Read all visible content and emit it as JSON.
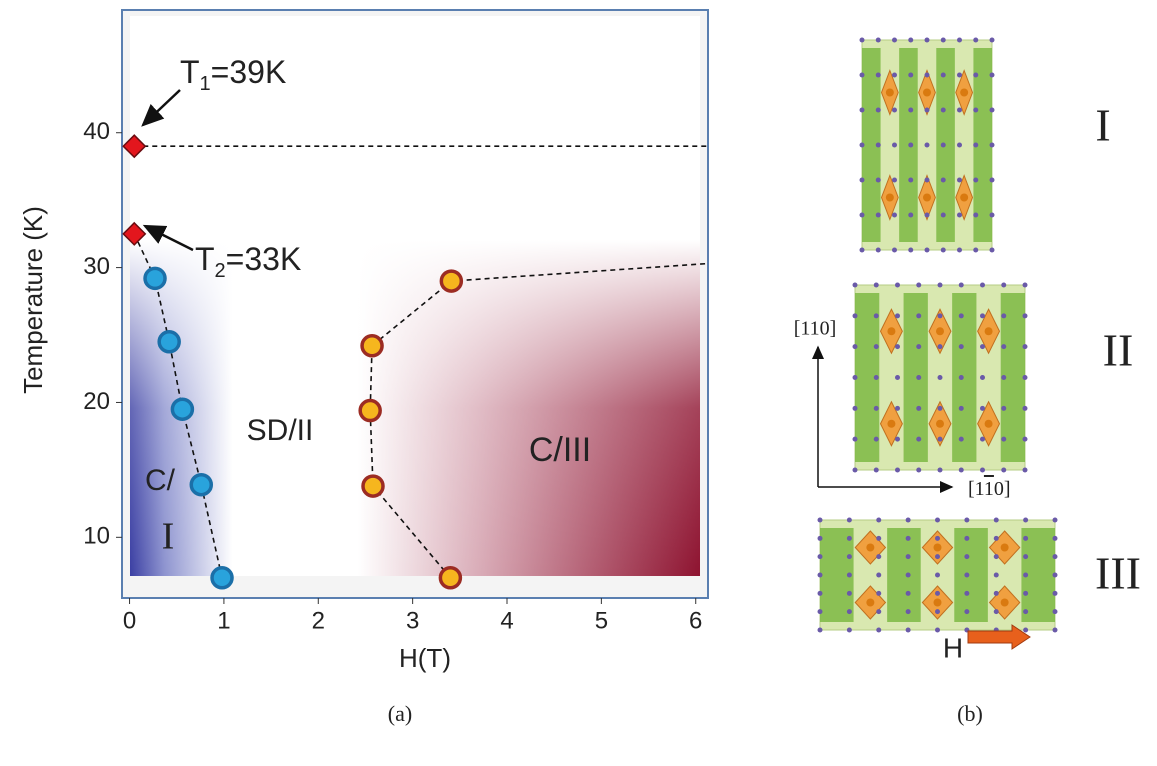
{
  "chart_data": {
    "type": "scatter",
    "xlabel": "H(T)",
    "ylabel": "Temperature (K)",
    "panel_label": "(a)",
    "xlim": [
      -0.08,
      6.13
    ],
    "ylim": [
      5.5,
      49.1
    ],
    "xticks": [
      0,
      1,
      2,
      3,
      4,
      5,
      6
    ],
    "yticks": [
      10,
      20,
      30,
      40
    ],
    "series": [
      {
        "color": "#29a3dc",
        "marker": "circle",
        "x": [
          0.27,
          0.42,
          0.56,
          0.76,
          0.98
        ],
        "values": [
          29.2,
          24.5,
          19.5,
          13.9,
          7.0
        ]
      },
      {
        "color": "#f6b61e",
        "marker": "circle",
        "x": [
          2.57,
          2.55,
          2.58,
          3.41,
          3.4
        ],
        "values": [
          24.2,
          19.4,
          13.8,
          29.0,
          7.0
        ]
      },
      {
        "color": "#e3161d",
        "marker": "diamond",
        "x": [
          0.05,
          0.05
        ],
        "values": [
          39,
          32.5
        ]
      }
    ],
    "boundaries": [
      {
        "x": [
          0.05,
          0.27,
          0.42,
          0.56,
          0.76,
          0.98
        ],
        "y": [
          32.5,
          29.2,
          24.5,
          19.5,
          13.9,
          7.0
        ]
      },
      {
        "x": [
          3.4,
          2.58,
          2.55,
          2.57,
          3.41,
          6.13
        ],
        "y": [
          7.0,
          13.8,
          19.4,
          24.2,
          29.0,
          30.3
        ]
      },
      {
        "x": [
          0.05,
          6.13
        ],
        "y": [
          39,
          39
        ]
      }
    ],
    "annotations": [
      {
        "main": "T",
        "sub": "1",
        "rest": "=39K"
      },
      {
        "main": "T",
        "sub": "2",
        "rest": "=33K"
      }
    ],
    "region_labels": [
      "SD/II",
      "C/III",
      "C/",
      "I"
    ]
  },
  "panel_b": {
    "panel_label": "(b)",
    "structures": [
      "I",
      "II",
      "III"
    ],
    "axis_up": "[110]",
    "axis_right": {
      "before": "[1",
      "bar": "1",
      "after": "0]"
    },
    "field_label": "H"
  }
}
